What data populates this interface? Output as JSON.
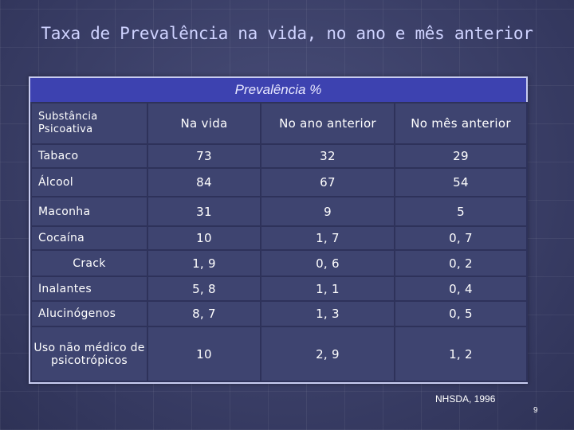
{
  "slide": {
    "title": "Taxa de Prevalência na vida, no ano e mês anterior",
    "source": "NHSDA, 1996",
    "page_number": "9"
  },
  "table": {
    "header_band": "Prevalência %",
    "columns": [
      "Substância Psicoativa",
      "Na vida",
      "No ano anterior",
      "No mês anterior"
    ],
    "rows": [
      {
        "substance": "Tabaco",
        "na_vida": "73",
        "no_ano": "32",
        "no_mes": "29"
      },
      {
        "substance": "Álcool",
        "na_vida": "84",
        "no_ano": "67",
        "no_mes": "54"
      },
      {
        "substance": "Maconha",
        "na_vida": "31",
        "no_ano": "9",
        "no_mes": "5"
      },
      {
        "substance": "Cocaína",
        "na_vida": "10",
        "no_ano": "1, 7",
        "no_mes": "0, 7"
      },
      {
        "substance": "Crack",
        "na_vida": "1, 9",
        "no_ano": "0, 6",
        "no_mes": "0, 2"
      },
      {
        "substance": "Inalantes",
        "na_vida": "5, 8",
        "no_ano": "1, 1",
        "no_mes": "0, 4"
      },
      {
        "substance": "Alucinógenos",
        "na_vida": "8, 7",
        "no_ano": "1, 3",
        "no_mes": "0, 5"
      },
      {
        "substance": "Uso não médico de psicotrópicos",
        "na_vida": "10",
        "no_ano": "2, 9",
        "no_mes": "1, 2"
      }
    ]
  },
  "colors": {
    "background": "#3c4068",
    "header_band": "#3d42b0",
    "title_text": "#cfd3ff"
  }
}
